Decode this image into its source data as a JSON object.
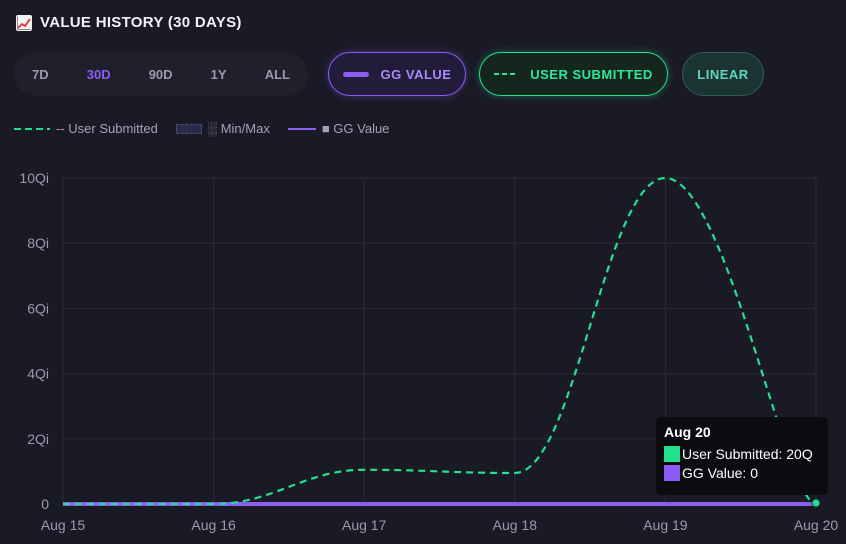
{
  "header": {
    "title": "VALUE HISTORY (30 DAYS)",
    "icon": "chart-increasing-icon"
  },
  "range_buttons": [
    {
      "label": "7D",
      "active": false
    },
    {
      "label": "30D",
      "active": true
    },
    {
      "label": "90D",
      "active": false
    },
    {
      "label": "1Y",
      "active": false
    },
    {
      "label": "ALL",
      "active": false
    }
  ],
  "toggles": {
    "gg_value": "GG VALUE",
    "user_submitted": "USER SUBMITTED",
    "linear": "LINEAR"
  },
  "legend": {
    "user_submitted": "-- User Submitted",
    "min_max": "░ Min/Max",
    "gg_value": "■ GG Value"
  },
  "colors": {
    "accent": "#8b5cf6",
    "user_submitted": "#22e08e",
    "background": "#1a1a26"
  },
  "chart_data": {
    "type": "line",
    "x": [
      "Aug 15",
      "Aug 16",
      "Aug 17",
      "Aug 18",
      "Aug 19",
      "Aug 20"
    ],
    "y_tick_labels": [
      "0",
      "2Qi",
      "4Qi",
      "6Qi",
      "8Qi",
      "10Qi"
    ],
    "ylim": [
      0,
      10
    ],
    "y_unit": "Qi",
    "grid": true,
    "series": [
      {
        "name": "User Submitted",
        "style": "dashed",
        "color": "#22e08e",
        "values": [
          0,
          0,
          1.05,
          0.95,
          10,
          0
        ]
      },
      {
        "name": "GG Value",
        "style": "solid",
        "color": "#8b5cf6",
        "values": [
          0,
          0,
          0,
          0,
          0,
          0
        ]
      }
    ]
  },
  "tooltip": {
    "title": "Aug 20",
    "user_submitted": "User Submitted: 20Q",
    "gg_value": "GG Value: 0"
  }
}
